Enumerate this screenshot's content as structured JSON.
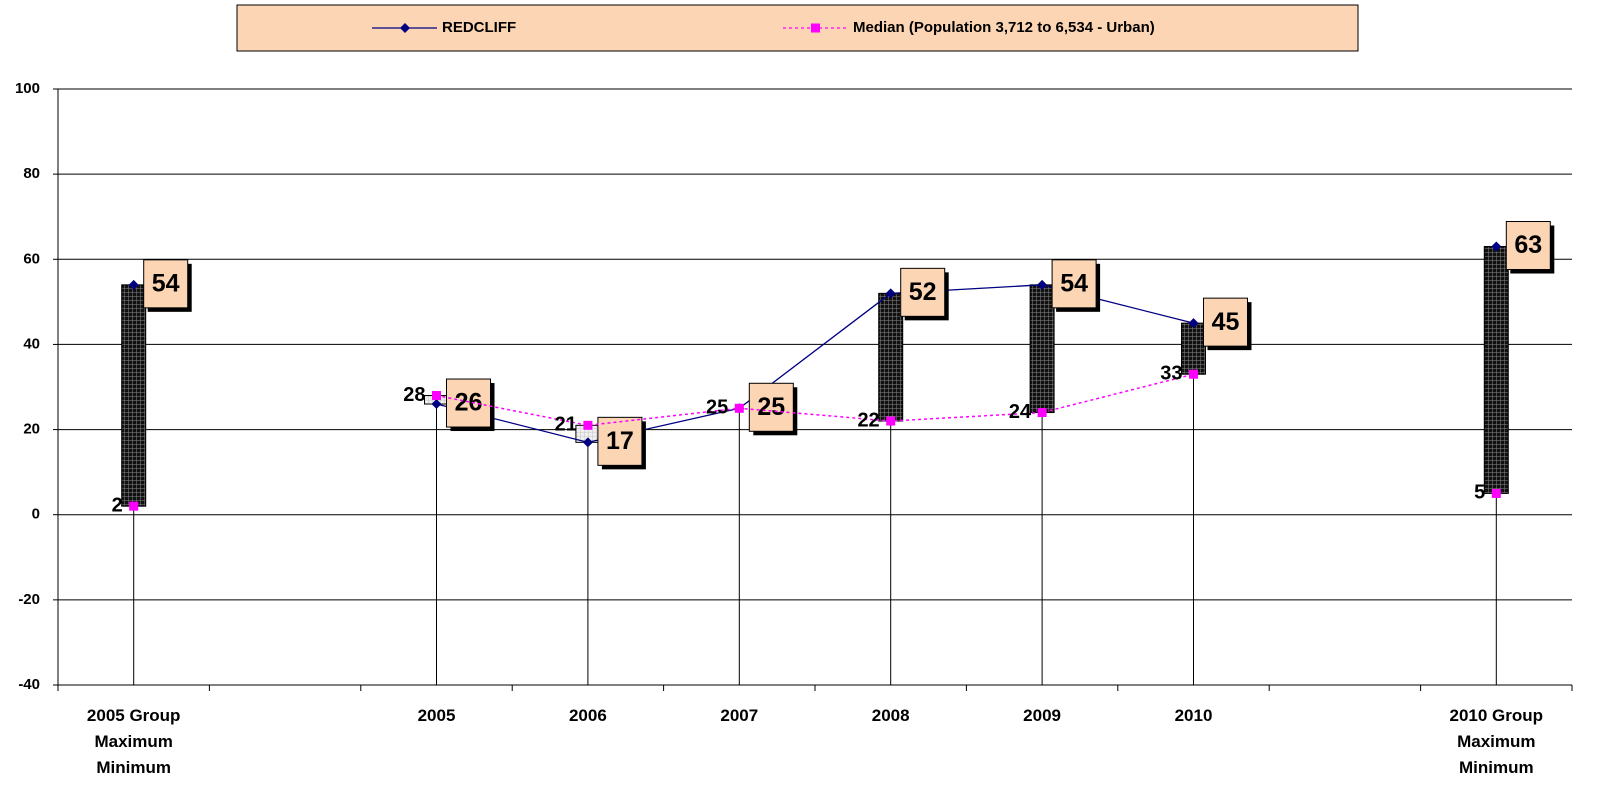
{
  "chart_data": {
    "type": "line",
    "categories": [
      "2005 Group Maximum Minimum",
      null,
      "2005",
      "2006",
      "2007",
      "2008",
      "2009",
      "2010",
      null,
      "2010 Group Maximum Minimum"
    ],
    "series": [
      {
        "name": "REDCLIFF",
        "color": "#000080",
        "values": [
          54,
          null,
          26,
          17,
          25,
          52,
          54,
          45,
          null,
          63
        ]
      },
      {
        "name": "Median (Population 3,712 to 6,534  - Urban)",
        "color": "#ff00ff",
        "values": [
          2,
          null,
          28,
          21,
          25,
          22,
          24,
          33,
          null,
          5
        ]
      }
    ],
    "ylim": [
      -40,
      100
    ],
    "yticks": [
      -40,
      -20,
      0,
      20,
      40,
      60,
      80,
      100
    ],
    "grid": true
  }
}
